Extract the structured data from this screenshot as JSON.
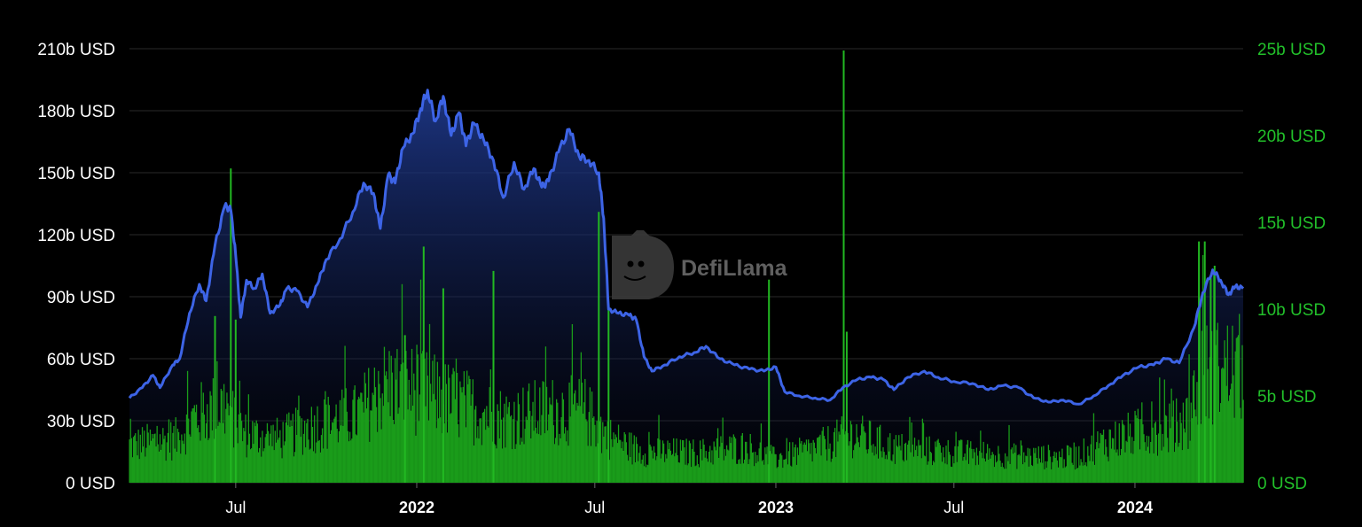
{
  "chart_data": {
    "type": "line",
    "watermark": "DefiLlama",
    "colors": {
      "tvl_line": "#3d64e6",
      "tvl_fill_top": "#1f3a8f",
      "volume_bars": "#1a9c1a",
      "left_axis_text": "#ffffff",
      "right_axis_text": "#22c02a",
      "background": "#000000"
    },
    "grid": true,
    "x_axis": {
      "range": [
        "2021-03-15",
        "2024-04-20"
      ],
      "ticks": [
        {
          "date": "2021-07-01",
          "label": "Jul",
          "bold": false
        },
        {
          "date": "2022-01-01",
          "label": "2022",
          "bold": true
        },
        {
          "date": "2022-07-01",
          "label": "Jul",
          "bold": false
        },
        {
          "date": "2023-01-01",
          "label": "2023",
          "bold": true
        },
        {
          "date": "2023-07-01",
          "label": "Jul",
          "bold": false
        },
        {
          "date": "2024-01-01",
          "label": "2024",
          "bold": true
        }
      ]
    },
    "y_left": {
      "ylim": [
        0,
        210
      ],
      "unit": "b USD",
      "ticks": [
        {
          "value": 0,
          "label": "0 USD"
        },
        {
          "value": 30,
          "label": "30b USD"
        },
        {
          "value": 60,
          "label": "60b USD"
        },
        {
          "value": 90,
          "label": "90b USD"
        },
        {
          "value": 120,
          "label": "120b USD"
        },
        {
          "value": 150,
          "label": "150b USD"
        },
        {
          "value": 180,
          "label": "180b USD"
        },
        {
          "value": 210,
          "label": "210b USD"
        }
      ]
    },
    "y_right": {
      "ylim": [
        0,
        25
      ],
      "unit": "b USD",
      "ticks": [
        {
          "value": 0,
          "label": "0 USD"
        },
        {
          "value": 5,
          "label": "5b USD"
        },
        {
          "value": 10,
          "label": "10b USD"
        },
        {
          "value": 15,
          "label": "15b USD"
        },
        {
          "value": 20,
          "label": "20b USD"
        },
        {
          "value": 25,
          "label": "25b USD"
        }
      ]
    },
    "series": [
      {
        "kind": "area-line",
        "axis": "left",
        "points": [
          [
            "2021-03-15",
            41
          ],
          [
            "2021-03-28",
            46
          ],
          [
            "2021-04-08",
            52
          ],
          [
            "2021-04-15",
            46
          ],
          [
            "2021-04-28",
            57
          ],
          [
            "2021-05-05",
            60
          ],
          [
            "2021-05-15",
            82
          ],
          [
            "2021-05-25",
            96
          ],
          [
            "2021-06-01",
            88
          ],
          [
            "2021-06-10",
            115
          ],
          [
            "2021-06-20",
            134
          ],
          [
            "2021-06-26",
            132
          ],
          [
            "2021-07-01",
            110
          ],
          [
            "2021-07-06",
            80
          ],
          [
            "2021-07-12",
            98
          ],
          [
            "2021-07-20",
            94
          ],
          [
            "2021-07-28",
            101
          ],
          [
            "2021-08-05",
            82
          ],
          [
            "2021-08-15",
            86
          ],
          [
            "2021-08-22",
            94
          ],
          [
            "2021-09-01",
            93
          ],
          [
            "2021-09-12",
            85
          ],
          [
            "2021-09-22",
            96
          ],
          [
            "2021-10-01",
            108
          ],
          [
            "2021-10-15",
            118
          ],
          [
            "2021-10-28",
            131
          ],
          [
            "2021-11-08",
            145
          ],
          [
            "2021-11-18",
            140
          ],
          [
            "2021-11-25",
            123
          ],
          [
            "2021-12-03",
            149
          ],
          [
            "2021-12-10",
            145
          ],
          [
            "2021-12-18",
            162
          ],
          [
            "2021-12-28",
            169
          ],
          [
            "2022-01-05",
            181
          ],
          [
            "2022-01-12",
            190
          ],
          [
            "2022-01-20",
            175
          ],
          [
            "2022-01-28",
            187
          ],
          [
            "2022-02-05",
            168
          ],
          [
            "2022-02-13",
            179
          ],
          [
            "2022-02-20",
            163
          ],
          [
            "2022-02-28",
            174
          ],
          [
            "2022-03-10",
            166
          ],
          [
            "2022-03-20",
            156
          ],
          [
            "2022-03-30",
            138
          ],
          [
            "2022-04-10",
            155
          ],
          [
            "2022-04-20",
            142
          ],
          [
            "2022-04-30",
            152
          ],
          [
            "2022-05-08",
            143
          ],
          [
            "2022-05-15",
            146
          ],
          [
            "2022-05-25",
            160
          ],
          [
            "2022-06-05",
            171
          ],
          [
            "2022-06-15",
            158
          ],
          [
            "2022-06-25",
            156
          ],
          [
            "2022-07-05",
            150
          ],
          [
            "2022-07-10",
            128
          ],
          [
            "2022-07-15",
            84
          ],
          [
            "2022-07-25",
            82
          ],
          [
            "2022-08-05",
            81
          ],
          [
            "2022-08-12",
            79
          ],
          [
            "2022-08-20",
            61
          ],
          [
            "2022-08-28",
            54
          ],
          [
            "2022-09-10",
            57
          ],
          [
            "2022-09-25",
            61
          ],
          [
            "2022-10-10",
            63
          ],
          [
            "2022-10-22",
            66
          ],
          [
            "2022-11-05",
            60
          ],
          [
            "2022-11-20",
            57
          ],
          [
            "2022-12-05",
            55
          ],
          [
            "2022-12-20",
            54
          ],
          [
            "2023-01-01",
            56
          ],
          [
            "2023-01-10",
            44
          ],
          [
            "2023-01-25",
            42
          ],
          [
            "2023-02-10",
            41
          ],
          [
            "2023-02-25",
            40
          ],
          [
            "2023-03-10",
            46
          ],
          [
            "2023-03-25",
            50
          ],
          [
            "2023-04-08",
            51
          ],
          [
            "2023-04-20",
            50
          ],
          [
            "2023-05-01",
            45
          ],
          [
            "2023-05-15",
            51
          ],
          [
            "2023-06-01",
            54
          ],
          [
            "2023-06-15",
            51
          ],
          [
            "2023-07-01",
            49
          ],
          [
            "2023-07-20",
            48
          ],
          [
            "2023-08-05",
            45
          ],
          [
            "2023-08-20",
            47
          ],
          [
            "2023-09-05",
            46
          ],
          [
            "2023-09-20",
            41
          ],
          [
            "2023-10-05",
            39
          ],
          [
            "2023-10-20",
            40
          ],
          [
            "2023-11-05",
            38
          ],
          [
            "2023-11-20",
            42
          ],
          [
            "2023-12-05",
            47
          ],
          [
            "2023-12-20",
            52
          ],
          [
            "2024-01-05",
            56
          ],
          [
            "2024-01-20",
            57
          ],
          [
            "2024-02-01",
            60
          ],
          [
            "2024-02-15",
            58
          ],
          [
            "2024-03-01",
            75
          ],
          [
            "2024-03-10",
            92
          ],
          [
            "2024-03-20",
            103
          ],
          [
            "2024-03-28",
            98
          ],
          [
            "2024-04-05",
            91
          ],
          [
            "2024-04-12",
            95
          ],
          [
            "2024-04-20",
            94
          ]
        ]
      },
      {
        "kind": "bars",
        "axis": "right",
        "baseline": [
          [
            "2021-03-15",
            2.4
          ],
          [
            "2021-05-01",
            2.8
          ],
          [
            "2021-05-20",
            4.2
          ],
          [
            "2021-06-20",
            5.0
          ],
          [
            "2021-07-10",
            3.1
          ],
          [
            "2021-08-15",
            2.8
          ],
          [
            "2021-09-15",
            3.6
          ],
          [
            "2021-11-01",
            4.3
          ],
          [
            "2021-12-01",
            6.3
          ],
          [
            "2022-01-01",
            5.9
          ],
          [
            "2022-02-15",
            5.0
          ],
          [
            "2022-04-01",
            4.1
          ],
          [
            "2022-05-15",
            4.6
          ],
          [
            "2022-06-20",
            4.6
          ],
          [
            "2022-07-15",
            2.9
          ],
          [
            "2022-08-15",
            2.0
          ],
          [
            "2022-10-15",
            1.9
          ],
          [
            "2022-12-01",
            2.3
          ],
          [
            "2023-01-01",
            1.5
          ],
          [
            "2023-02-10",
            2.2
          ],
          [
            "2023-03-20",
            3.1
          ],
          [
            "2023-05-01",
            2.2
          ],
          [
            "2023-07-01",
            1.9
          ],
          [
            "2023-09-01",
            1.7
          ],
          [
            "2023-11-01",
            1.6
          ],
          [
            "2023-12-01",
            2.6
          ],
          [
            "2024-01-15",
            3.4
          ],
          [
            "2024-02-20",
            3.6
          ],
          [
            "2024-03-10",
            6.9
          ],
          [
            "2024-04-20",
            7.3
          ]
        ],
        "spikes": [
          [
            "2021-06-10",
            9.6
          ],
          [
            "2021-06-26",
            18.1
          ],
          [
            "2021-07-01",
            9.4
          ],
          [
            "2021-12-20",
            8.5
          ],
          [
            "2022-01-08",
            13.6
          ],
          [
            "2022-01-28",
            11.2
          ],
          [
            "2022-03-20",
            12.2
          ],
          [
            "2022-07-05",
            15.6
          ],
          [
            "2022-07-15",
            10.2
          ],
          [
            "2022-12-25",
            11.7
          ],
          [
            "2023-03-11",
            24.9
          ],
          [
            "2023-03-14",
            8.7
          ],
          [
            "2024-03-06",
            13.9
          ],
          [
            "2024-03-12",
            13.9
          ],
          [
            "2024-03-18",
            11.9
          ],
          [
            "2024-03-22",
            12.5
          ]
        ]
      }
    ]
  }
}
